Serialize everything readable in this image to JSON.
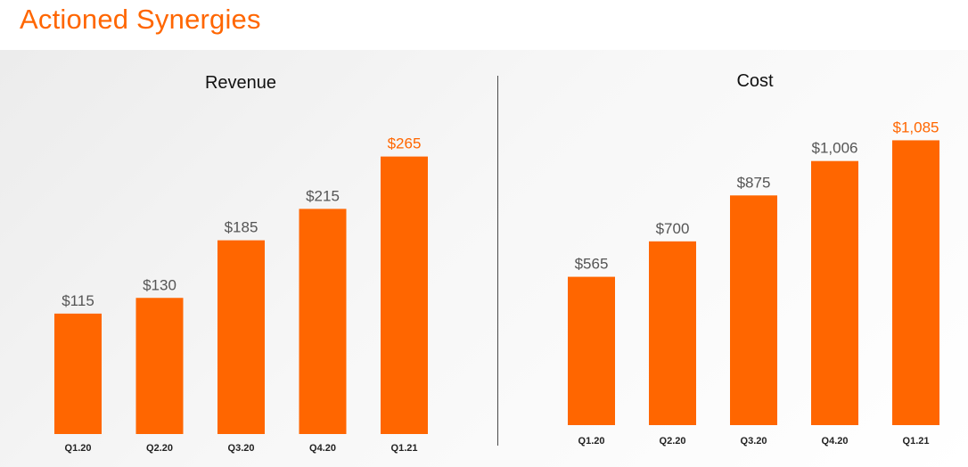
{
  "page": {
    "title": "Actioned Synergies"
  },
  "colors": {
    "accent": "#ff6600",
    "label": "#555555",
    "text": "#111111"
  },
  "chart_data": [
    {
      "type": "bar",
      "title": "Revenue",
      "categories": [
        "Q1.20",
        "Q2.20",
        "Q3.20",
        "Q4.20",
        "Q1.21"
      ],
      "values": [
        115,
        130,
        185,
        215,
        265
      ],
      "value_labels": [
        "$115",
        "$130",
        "$185",
        "$215",
        "$265"
      ],
      "highlight_index": 4,
      "ylim": [
        0,
        320
      ],
      "grid": false,
      "legend": "none"
    },
    {
      "type": "bar",
      "title": "Cost",
      "categories": [
        "Q1.20",
        "Q2.20",
        "Q3.20",
        "Q4.20",
        "Q1.21"
      ],
      "values": [
        565,
        700,
        875,
        1006,
        1085
      ],
      "value_labels": [
        "$565",
        "$700",
        "$875",
        "$1,006",
        "$1,085"
      ],
      "highlight_index": 4,
      "ylim": [
        0,
        1280
      ],
      "grid": false,
      "legend": "none"
    }
  ]
}
